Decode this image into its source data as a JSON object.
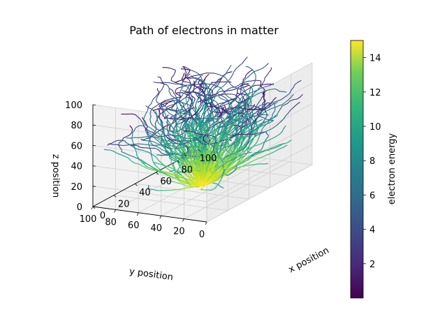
{
  "chart_data": {
    "type": "line",
    "subtype": "3d-line-collection",
    "title": "Path of electrons in matter",
    "xlabel": "x position",
    "ylabel": "y position",
    "zlabel": "z position",
    "xlim": [
      0,
      100
    ],
    "ylim": [
      0,
      100
    ],
    "zlim": [
      0,
      100
    ],
    "x_ticks": [
      "0",
      "20",
      "40",
      "60",
      "80",
      "100"
    ],
    "y_ticks": [
      "0",
      "20",
      "40",
      "60",
      "80",
      "100"
    ],
    "z_ticks": [
      "0",
      "20",
      "40",
      "60",
      "80",
      "100"
    ],
    "grid": true,
    "origin": [
      50,
      50,
      0
    ],
    "num_tracks": 160,
    "colorbar": {
      "label": "electron energy",
      "colormap": "viridis",
      "range": [
        0,
        15
      ],
      "ticks": [
        "2",
        "4",
        "6",
        "8",
        "10",
        "12",
        "14"
      ],
      "position": "right"
    },
    "colors": {
      "pane": "#f2f2f2",
      "pane_side": "#ececec",
      "grid": "#cfcfcf"
    }
  }
}
